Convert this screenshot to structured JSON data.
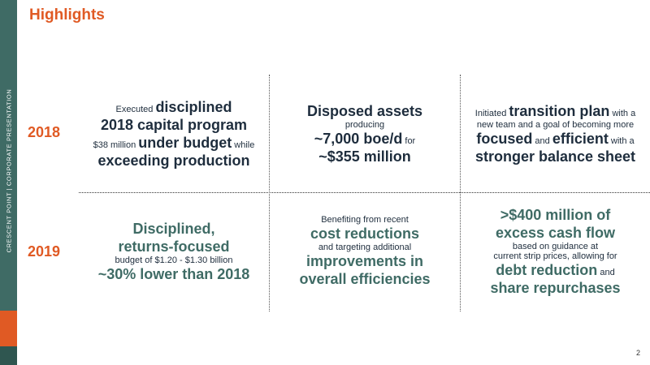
{
  "sidebar": {
    "vertical_text": "CRESCENT POINT   |   CORPORATE PRESENTATION",
    "colors": {
      "teal": "#3f6b65",
      "orange": "#e05a24"
    }
  },
  "title": "Highlights",
  "years": [
    "2018",
    "2019"
  ],
  "cells": {
    "r2018_c1": {
      "l1_small": "Executed ",
      "l1_big": "disciplined",
      "l2_big": "2018 capital program",
      "l3_small_a": "$38 million ",
      "l3_big": "under budget",
      "l3_small_b": " while",
      "l4_big": "exceeding production"
    },
    "r2018_c2": {
      "l1_big": "Disposed assets",
      "l2_small": "producing",
      "l3_big": "~7,000 boe/d",
      "l3_small": " for",
      "l4_big": "~$355 million"
    },
    "r2018_c3": {
      "l1_small": "Initiated ",
      "l1_big": "transition plan",
      "l1_small_b": " with a",
      "l2_small": "new team and a goal of becoming more",
      "l3_big_a": "focused",
      "l3_small_a": " and ",
      "l3_big_b": "efficient",
      "l3_small_b": " with a",
      "l4_big": "stronger balance sheet"
    },
    "r2019_c1": {
      "l1_big": "Disciplined,",
      "l2_big": "returns-focused",
      "l3_small": "budget of $1.20 - $1.30 billion",
      "l4_big": "~30% lower than 2018"
    },
    "r2019_c2": {
      "l1_small": "Benefiting from recent",
      "l2_big": "cost reductions",
      "l3_small": "and targeting additional",
      "l4_big": "improvements in",
      "l5_big": "overall efficiencies"
    },
    "r2019_c3": {
      "l1_big": ">$400 million of",
      "l2_big": "excess cash flow",
      "l3_small": "based on guidance at",
      "l4_small": "current strip prices, allowing for",
      "l5_big": "debt reduction",
      "l5_small": " and",
      "l6_big": "share repurchases"
    }
  },
  "page_number": "2"
}
